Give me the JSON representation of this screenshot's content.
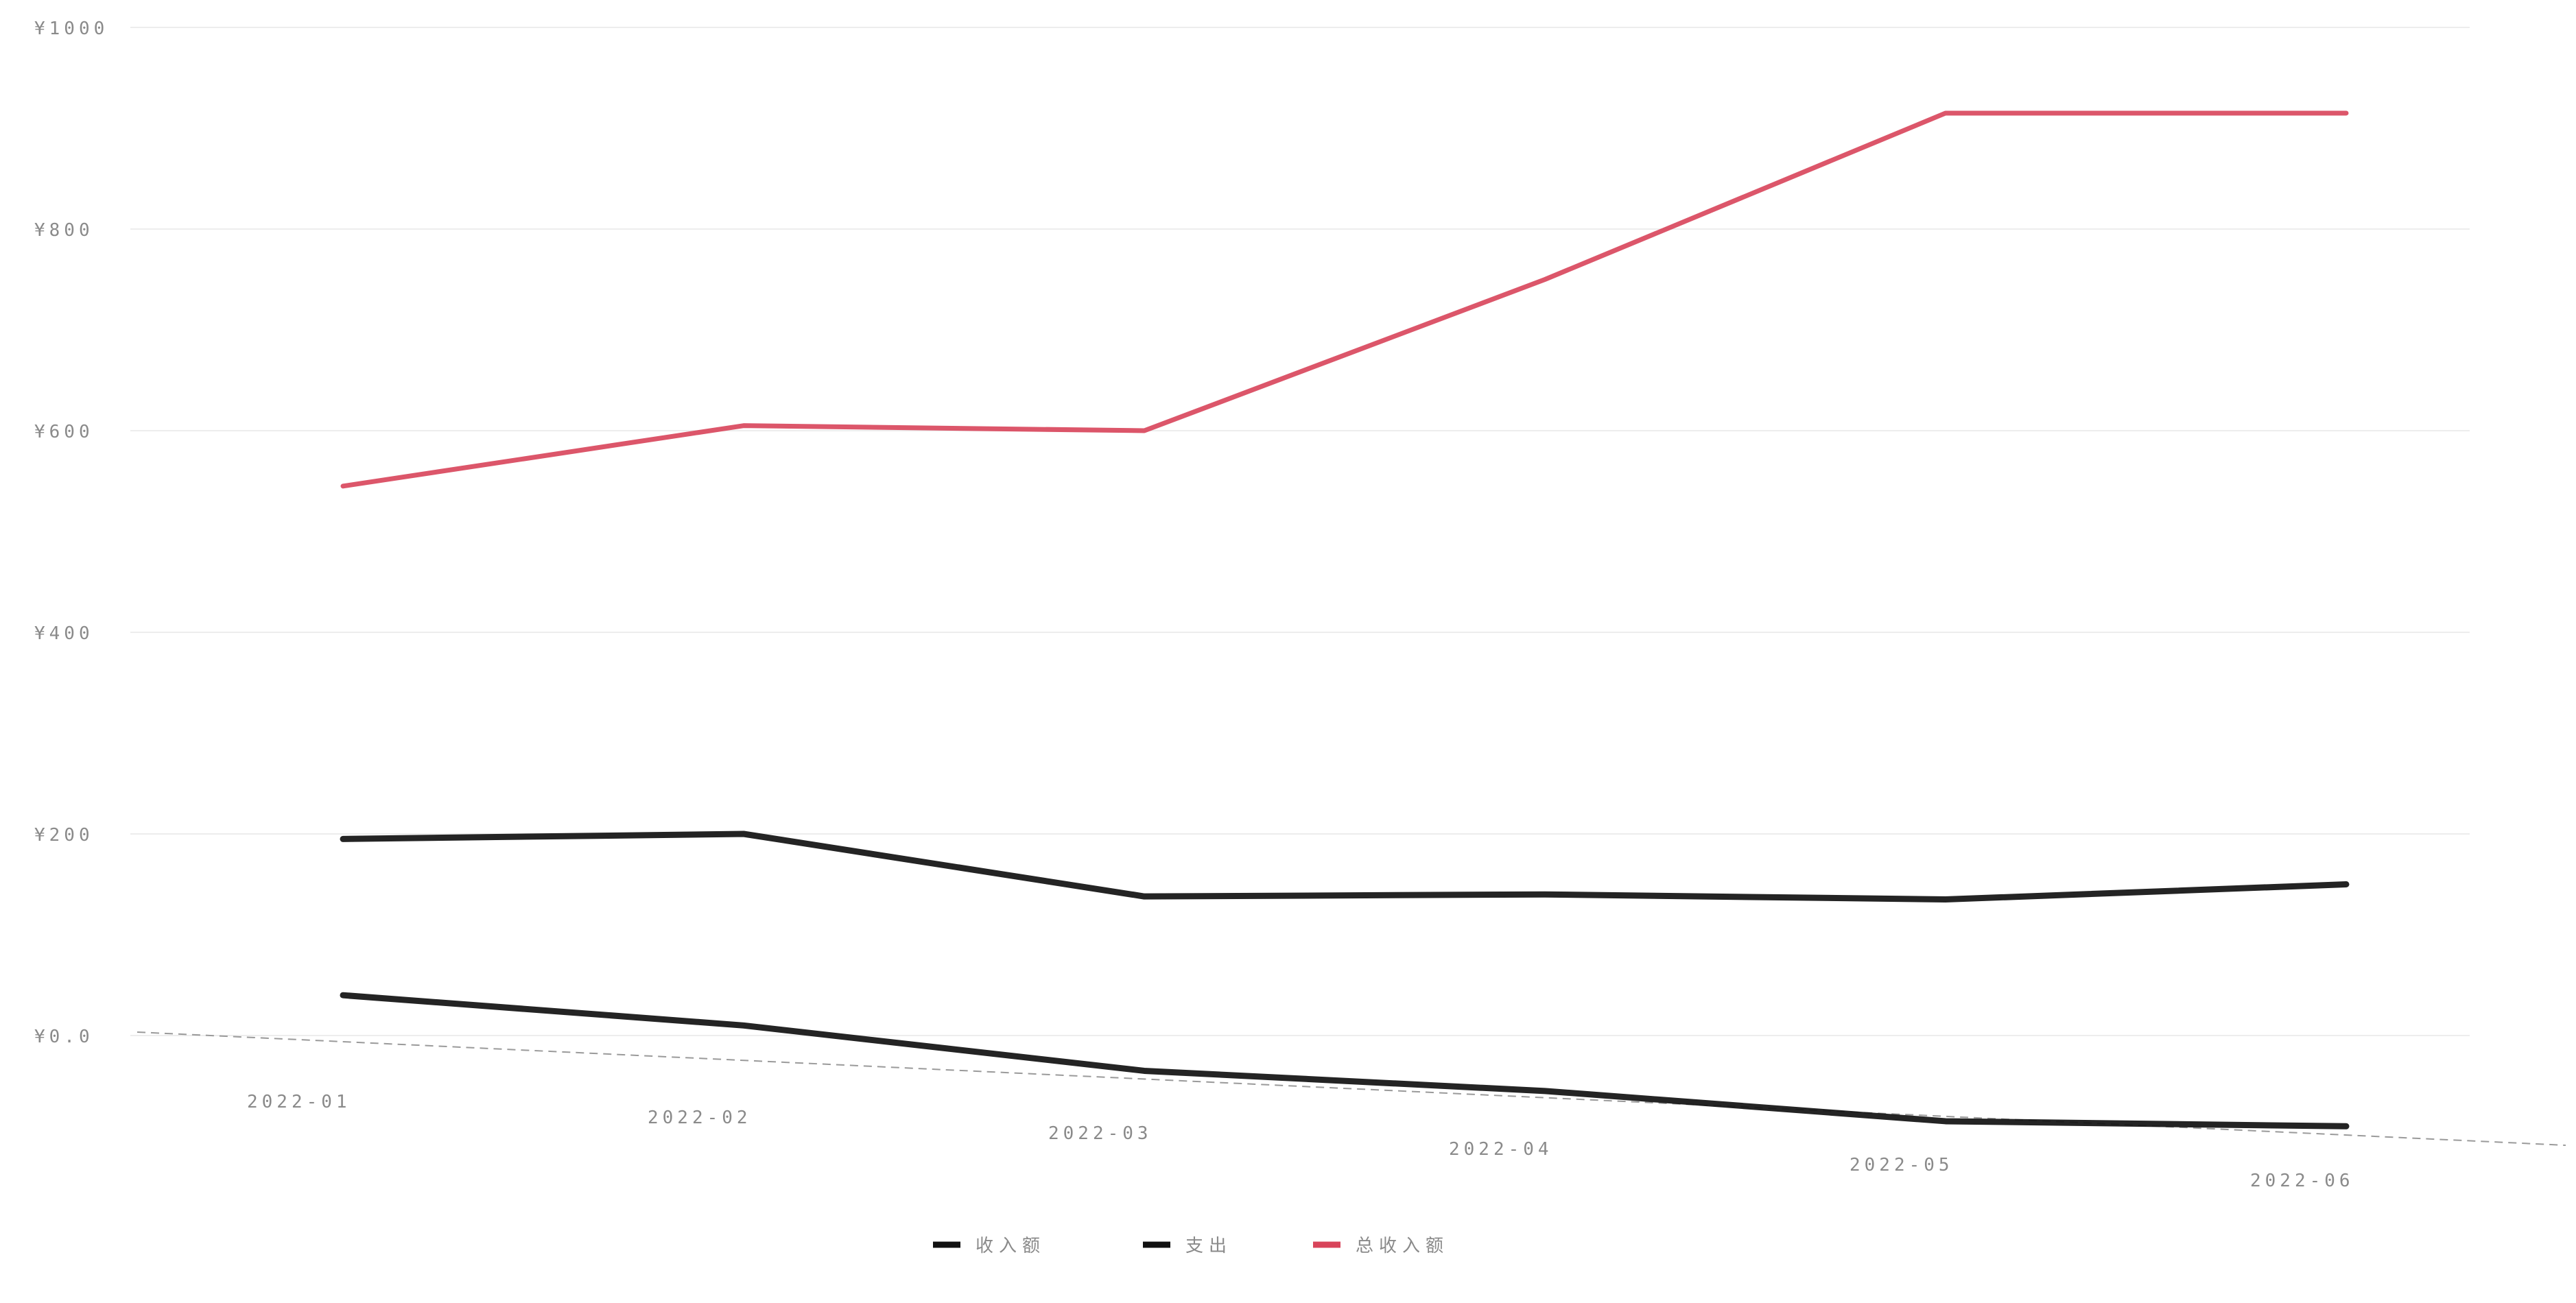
{
  "chart_data": {
    "type": "line",
    "title": "",
    "xlabel": "",
    "ylabel": "",
    "categories": [
      "2022-01",
      "2022-02",
      "2022-03",
      "2022-04",
      "2022-05",
      "2022-06"
    ],
    "y_ticks": [
      {
        "value": 0,
        "label": "¥0.0"
      },
      {
        "value": 200,
        "label": "¥200"
      },
      {
        "value": 400,
        "label": "¥400"
      },
      {
        "value": 600,
        "label": "¥600"
      },
      {
        "value": 800,
        "label": "¥800"
      },
      {
        "value": 1000,
        "label": "¥1000"
      }
    ],
    "ylim": [
      0,
      1000
    ],
    "grid": false,
    "legend_position": "bottom",
    "series": [
      {
        "name": "收入额",
        "color": "#111111",
        "values": [
          195,
          200,
          138,
          140,
          135,
          150
        ]
      },
      {
        "name": "支出",
        "color": "#111111",
        "values": [
          40,
          10,
          -35,
          -55,
          -85,
          -90
        ]
      },
      {
        "name": "总收入额",
        "color": "#d8445a",
        "values": [
          545,
          605,
          600,
          750,
          915,
          915
        ]
      }
    ]
  }
}
